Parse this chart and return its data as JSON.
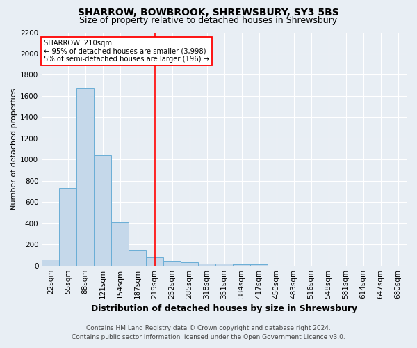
{
  "title": "SHARROW, BOWBROOK, SHREWSBURY, SY3 5BS",
  "subtitle": "Size of property relative to detached houses in Shrewsbury",
  "xlabel": "Distribution of detached houses by size in Shrewsbury",
  "ylabel": "Number of detached properties",
  "footnote1": "Contains HM Land Registry data © Crown copyright and database right 2024.",
  "footnote2": "Contains public sector information licensed under the Open Government Licence v3.0.",
  "categories": [
    "22sqm",
    "55sqm",
    "88sqm",
    "121sqm",
    "154sqm",
    "187sqm",
    "219sqm",
    "252sqm",
    "285sqm",
    "318sqm",
    "351sqm",
    "384sqm",
    "417sqm",
    "450sqm",
    "483sqm",
    "516sqm",
    "548sqm",
    "581sqm",
    "614sqm",
    "647sqm",
    "680sqm"
  ],
  "values": [
    55,
    730,
    1670,
    1040,
    410,
    150,
    80,
    45,
    30,
    20,
    15,
    10,
    10,
    0,
    0,
    0,
    0,
    0,
    0,
    0,
    0
  ],
  "bar_color": "#c5d8ea",
  "bar_edge_color": "#6aaed6",
  "red_line_x": 6.0,
  "annotation_text_line1": "SHARROW: 210sqm",
  "annotation_text_line2": "← 95% of detached houses are smaller (3,998)",
  "annotation_text_line3": "5% of semi-detached houses are larger (196) →",
  "ylim": [
    0,
    2200
  ],
  "yticks": [
    0,
    200,
    400,
    600,
    800,
    1000,
    1200,
    1400,
    1600,
    1800,
    2000,
    2200
  ],
  "background_color": "#e8eef4",
  "grid_color": "#ffffff",
  "title_fontsize": 10,
  "subtitle_fontsize": 9,
  "xlabel_fontsize": 9,
  "ylabel_fontsize": 8,
  "tick_fontsize": 7.5,
  "footnote_fontsize": 6.5
}
